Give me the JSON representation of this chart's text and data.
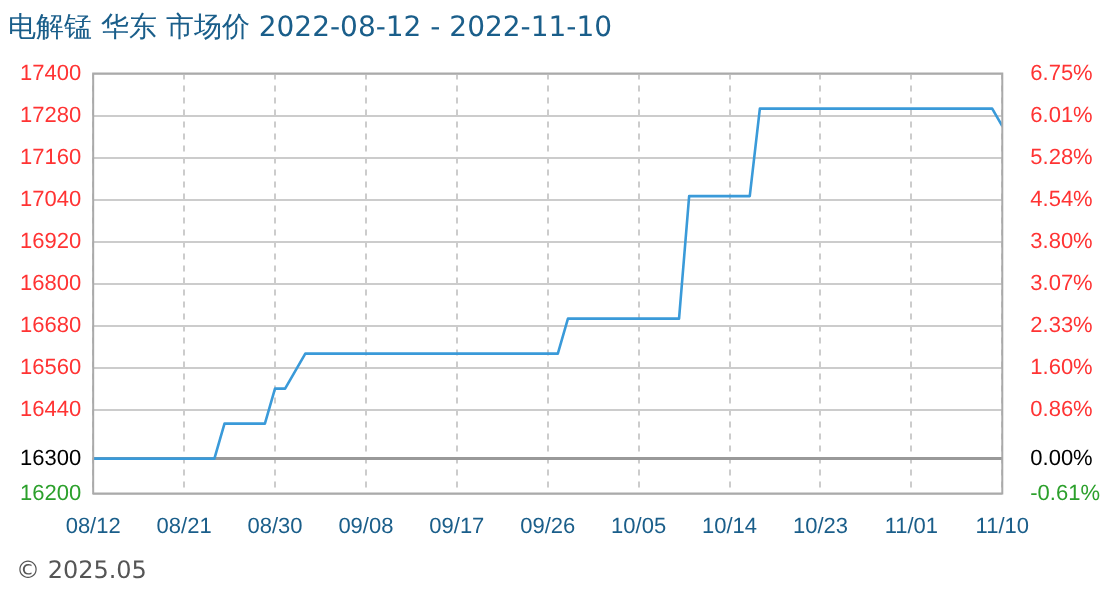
{
  "chart_data": {
    "type": "line",
    "title": "电解锰 华东 市场价 2022-08-12 - 2022-11-10",
    "x": [
      "2022-08-12",
      "2022-08-24",
      "2022-08-25",
      "2022-08-29",
      "2022-08-30",
      "2022-08-31",
      "2022-09-02",
      "2022-09-27",
      "2022-09-28",
      "2022-10-09",
      "2022-10-10",
      "2022-10-16",
      "2022-10-17",
      "2022-11-09",
      "2022-11-10"
    ],
    "series": [
      {
        "color": "#3a9ad9",
        "values": [
          16300,
          16300,
          16400,
          16400,
          16500,
          16500,
          16600,
          16600,
          16700,
          16700,
          17050,
          17050,
          17300,
          17300,
          17250
        ]
      }
    ],
    "xlim": [
      "2022-08-12",
      "2022-11-10"
    ],
    "xticks": [
      {
        "value": "2022-08-12",
        "label": "08/12"
      },
      {
        "value": "2022-08-21",
        "label": "08/21"
      },
      {
        "value": "2022-08-30",
        "label": "08/30"
      },
      {
        "value": "2022-09-08",
        "label": "09/08"
      },
      {
        "value": "2022-09-17",
        "label": "09/17"
      },
      {
        "value": "2022-09-26",
        "label": "09/26"
      },
      {
        "value": "2022-10-05",
        "label": "10/05"
      },
      {
        "value": "2022-10-14",
        "label": "10/14"
      },
      {
        "value": "2022-10-23",
        "label": "10/23"
      },
      {
        "value": "2022-11-01",
        "label": "11/01"
      },
      {
        "value": "2022-11-10",
        "label": "11/10"
      }
    ],
    "ylim": [
      16200,
      17400
    ],
    "yticks": [
      16200,
      16300,
      16440,
      16560,
      16680,
      16800,
      16920,
      17040,
      17160,
      17280,
      17400
    ],
    "y2lim": [
      -0.61,
      6.75
    ],
    "y2ticks": [
      {
        "value": -0.61,
        "label": "-0.61%"
      },
      {
        "value": 0,
        "label": "0.00%"
      },
      {
        "value": 0.86,
        "label": "0.86%"
      },
      {
        "value": 1.6,
        "label": "1.60%"
      },
      {
        "value": 2.33,
        "label": "2.33%"
      },
      {
        "value": 3.07,
        "label": "3.07%"
      },
      {
        "value": 3.8,
        "label": "3.80%"
      },
      {
        "value": 4.54,
        "label": "4.54%"
      },
      {
        "value": 5.28,
        "label": "5.28%"
      },
      {
        "value": 6.01,
        "label": "6.01%"
      },
      {
        "value": 6.75,
        "label": "6.75%"
      }
    ],
    "ref_lines": [
      {
        "axis": "y",
        "value": 16300,
        "color": "#999999"
      }
    ],
    "grid": true,
    "legend": false,
    "marker": "none",
    "line_style": "solid",
    "annotations": [
      "© 2025.05"
    ]
  }
}
